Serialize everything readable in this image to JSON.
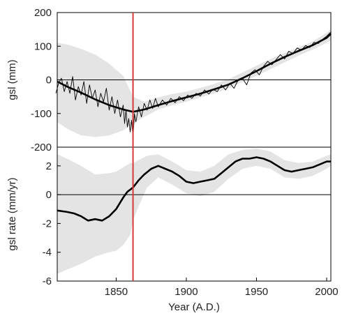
{
  "chart_data": [
    {
      "type": "line",
      "ylabel": "gsl (mm)",
      "xlim": [
        1808,
        2003
      ],
      "ylim": [
        -200,
        200
      ],
      "yticks": [
        200,
        100,
        0,
        -100,
        -200
      ],
      "zero_line": true,
      "band": {
        "x": [
          1808,
          1815,
          1825,
          1835,
          1845,
          1855,
          1862,
          1870,
          1880,
          1890,
          1900,
          1910,
          1920,
          1930,
          1940,
          1950,
          1960,
          1970,
          1980,
          1990,
          2000,
          2003
        ],
        "upper": [
          110,
          105,
          92,
          75,
          48,
          12,
          -50,
          -65,
          -52,
          -42,
          -35,
          -24,
          -12,
          2,
          22,
          42,
          62,
          80,
          97,
          114,
          140,
          150
        ],
        "lower": [
          -125,
          -145,
          -165,
          -170,
          -165,
          -150,
          -130,
          -110,
          -88,
          -75,
          -65,
          -52,
          -40,
          -25,
          -6,
          12,
          32,
          52,
          72,
          90,
          110,
          118
        ]
      },
      "series": [
        {
          "color": "#000000",
          "style": "smooth",
          "x": [
            1808,
            1815,
            1825,
            1835,
            1845,
            1855,
            1862,
            1870,
            1880,
            1890,
            1900,
            1910,
            1920,
            1930,
            1940,
            1950,
            1960,
            1970,
            1980,
            1990,
            2000,
            2003
          ],
          "y": [
            -5,
            -20,
            -38,
            -58,
            -75,
            -88,
            -95,
            -88,
            -75,
            -63,
            -52,
            -41,
            -28,
            -14,
            5,
            26,
            48,
            68,
            86,
            103,
            125,
            137
          ]
        },
        {
          "color": "#000000",
          "style": "thin",
          "x": [
            1807,
            1809,
            1811,
            1813,
            1815,
            1817,
            1819,
            1821,
            1823,
            1825,
            1827,
            1829,
            1831,
            1833,
            1835,
            1837,
            1839,
            1841,
            1843,
            1845,
            1847,
            1849,
            1851,
            1853,
            1855,
            1856,
            1857,
            1858,
            1859,
            1860,
            1861,
            1862,
            1863,
            1864,
            1866,
            1868,
            1870,
            1872,
            1874,
            1876,
            1878,
            1880,
            1883,
            1886,
            1889,
            1892,
            1895,
            1898,
            1901,
            1904,
            1907,
            1910,
            1913,
            1916,
            1919,
            1922,
            1925,
            1928,
            1931,
            1934,
            1937,
            1940,
            1943,
            1946,
            1949,
            1952,
            1955,
            1958,
            1961,
            1964,
            1967,
            1970,
            1973,
            1976,
            1979,
            1982,
            1985,
            1988,
            1991,
            1994,
            1997,
            2000,
            2003
          ],
          "y": [
            -40,
            -10,
            5,
            -35,
            -5,
            -40,
            10,
            -60,
            -20,
            -45,
            -5,
            -70,
            -15,
            -55,
            -30,
            -80,
            -40,
            -65,
            -25,
            -90,
            -50,
            -100,
            -60,
            -110,
            -75,
            -130,
            -90,
            -140,
            -115,
            -155,
            -120,
            -172,
            -100,
            -125,
            -80,
            -110,
            -70,
            -90,
            -60,
            -85,
            -55,
            -80,
            -60,
            -75,
            -55,
            -68,
            -50,
            -62,
            -45,
            -55,
            -40,
            -48,
            -30,
            -42,
            -28,
            -35,
            -15,
            -30,
            -10,
            -25,
            0,
            5,
            -15,
            20,
            30,
            15,
            40,
            55,
            45,
            60,
            75,
            62,
            85,
            78,
            95,
            88,
            102,
            96,
            112,
            108,
            120,
            130,
            142
          ]
        }
      ],
      "marker_line": {
        "x": 1862,
        "color": "#d43a3a"
      }
    },
    {
      "type": "line",
      "xlabel": "Year (A.D.)",
      "ylabel": "gsl rate (mm/yr)",
      "xlim": [
        1808,
        2003
      ],
      "ylim": [
        -6,
        3.3
      ],
      "yticks": [
        2,
        0,
        -2,
        -4,
        -6
      ],
      "xticks": [
        1850,
        1900,
        1950,
        2000
      ],
      "zero_line": true,
      "band": {
        "x": [
          1808,
          1815,
          1825,
          1835,
          1845,
          1850,
          1855,
          1860,
          1862,
          1866,
          1872,
          1880,
          1890,
          1900,
          1910,
          1920,
          1930,
          1940,
          1950,
          1960,
          1970,
          1980,
          1990,
          2000,
          2003
        ],
        "upper": [
          2.8,
          2.5,
          2.0,
          1.4,
          1.5,
          1.6,
          1.9,
          2.2,
          2.2,
          2.4,
          2.7,
          2.8,
          2.3,
          1.7,
          1.6,
          2.0,
          2.8,
          3.1,
          3.2,
          3.0,
          2.4,
          2.2,
          2.3,
          2.7,
          2.8
        ],
        "lower": [
          -5.5,
          -5.2,
          -4.8,
          -4.3,
          -4.0,
          -3.9,
          -3.5,
          -2.8,
          -1.8,
          -0.8,
          0.5,
          1.2,
          0.7,
          0.1,
          -0.1,
          0.2,
          1.1,
          1.8,
          2.0,
          1.8,
          1.2,
          1.1,
          1.3,
          1.8,
          2.0
        ]
      },
      "series": [
        {
          "color": "#000000",
          "style": "smooth",
          "x": [
            1808,
            1815,
            1820,
            1825,
            1830,
            1835,
            1840,
            1845,
            1850,
            1855,
            1858,
            1862,
            1866,
            1870,
            1875,
            1880,
            1885,
            1890,
            1895,
            1900,
            1905,
            1910,
            1915,
            1920,
            1925,
            1930,
            1935,
            1940,
            1945,
            1950,
            1955,
            1960,
            1965,
            1970,
            1975,
            1980,
            1985,
            1990,
            1995,
            2000,
            2003
          ],
          "y": [
            -1.1,
            -1.2,
            -1.3,
            -1.5,
            -1.8,
            -1.7,
            -1.8,
            -1.5,
            -1.0,
            -0.2,
            0.2,
            0.5,
            1.0,
            1.4,
            1.8,
            2.0,
            1.8,
            1.6,
            1.3,
            0.9,
            0.8,
            0.9,
            1.0,
            1.1,
            1.5,
            1.9,
            2.3,
            2.5,
            2.5,
            2.6,
            2.5,
            2.3,
            2.0,
            1.7,
            1.6,
            1.7,
            1.8,
            1.9,
            2.1,
            2.3,
            2.3
          ]
        }
      ],
      "marker_line": {
        "x": 1862,
        "color": "#d43a3a"
      }
    }
  ]
}
